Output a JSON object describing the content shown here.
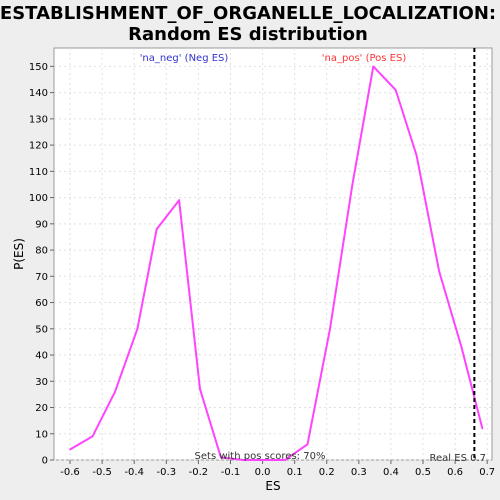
{
  "chart_data": {
    "type": "line",
    "title_lines": [
      "ESTABLISHMENT_OF_ORGANELLE_LOCALIZATION:",
      "Random ES distribution"
    ],
    "xlabel": "ES",
    "ylabel": "P(ES)",
    "xlim": [
      -0.65,
      0.715
    ],
    "ylim": [
      0,
      157
    ],
    "x_ticks": [
      "-0.6",
      "-0.5",
      "-0.4",
      "-0.3",
      "-0.2",
      "-0.1",
      "0.0",
      "0.1",
      "0.2",
      "0.3",
      "0.4",
      "0.5",
      "0.6",
      "0.7"
    ],
    "x_tick_values": [
      -0.6,
      -0.5,
      -0.4,
      -0.3,
      -0.2,
      -0.1,
      0.0,
      0.1,
      0.2,
      0.3,
      0.4,
      0.5,
      0.6,
      0.7
    ],
    "y_ticks": [
      "0",
      "10",
      "20",
      "30",
      "40",
      "50",
      "60",
      "70",
      "80",
      "90",
      "100",
      "110",
      "120",
      "130",
      "140",
      "150"
    ],
    "y_tick_values": [
      0,
      10,
      20,
      30,
      40,
      50,
      60,
      70,
      80,
      90,
      100,
      110,
      120,
      130,
      140,
      150
    ],
    "grid": true,
    "series": [
      {
        "color": "#ff44ff",
        "x": [
          -0.6,
          -0.53,
          -0.46,
          -0.39,
          -0.33,
          -0.26,
          -0.195,
          -0.13,
          -0.06,
          0.0,
          0.07,
          0.14,
          0.21,
          0.28,
          0.345,
          0.415,
          0.48,
          0.55,
          0.62,
          0.685
        ],
        "y": [
          4,
          9,
          26,
          50,
          88,
          99,
          27,
          1,
          0,
          0,
          0,
          6,
          50,
          105,
          150,
          141,
          116,
          72,
          43,
          12
        ]
      }
    ],
    "annotations": {
      "neg_label": "'na_neg' (Neg ES)",
      "neg_color": "#3333cc",
      "pos_label": "'na_pos' (Pos ES)",
      "pos_color": "#ff3333",
      "sets_text": "Sets with pos scores: 70%",
      "real_es_text": "Real ES 0.7",
      "real_es_value": 0.66
    }
  }
}
